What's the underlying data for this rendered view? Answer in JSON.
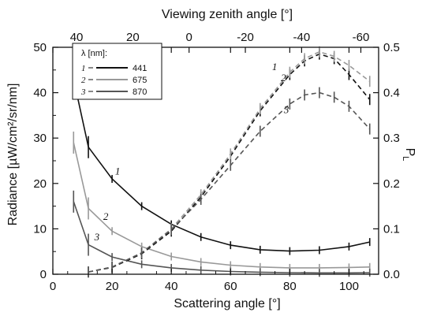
{
  "chart_data": {
    "type": "line",
    "xlabel": "Scattering angle [°]",
    "xlim": [
      0,
      110
    ],
    "xticks": [
      "0",
      "20",
      "40",
      "60",
      "80",
      "100"
    ],
    "ylabel": "Radiance [µW/cm²/sr/nm]",
    "ylim": [
      0,
      50
    ],
    "yticks": [
      "0",
      "10",
      "20",
      "30",
      "40",
      "50"
    ],
    "y2label": "P",
    "y2label_sub": "L",
    "y2lim": [
      0,
      0.5
    ],
    "y2ticks": [
      "0.0",
      "0.1",
      "0.2",
      "0.3",
      "0.4",
      "0.5"
    ],
    "x2label": "Viewing zenith angle [°]",
    "x2ticks": [
      {
        "label": "40",
        "at": 8
      },
      {
        "label": "20",
        "at": 27
      },
      {
        "label": "0",
        "at": 46
      },
      {
        "label": "-20",
        "at": 65
      },
      {
        "label": "-40",
        "at": 84
      },
      {
        "label": "-60",
        "at": 104
      }
    ],
    "legend": {
      "title": "λ [nm]:",
      "entries": [
        {
          "num": "1",
          "label": "441"
        },
        {
          "num": "2",
          "label": "675"
        },
        {
          "num": "3",
          "label": "870"
        }
      ]
    },
    "series": [
      {
        "name": "441",
        "num": "1",
        "color": "#111111",
        "axis": "left",
        "style": "solid",
        "x": [
          7,
          12,
          20,
          30,
          40,
          50,
          60,
          70,
          80,
          90,
          100,
          107
        ],
        "y": [
          43,
          28,
          21,
          15,
          11,
          8.2,
          6.4,
          5.4,
          5.1,
          5.3,
          6.1,
          7.1
        ],
        "label_at": {
          "x": 21,
          "y": 22
        }
      },
      {
        "name": "675",
        "num": "2",
        "color": "#999999",
        "axis": "left",
        "style": "solid",
        "x": [
          7,
          12,
          20,
          30,
          40,
          50,
          60,
          70,
          80,
          90,
          100,
          107
        ],
        "y": [
          29,
          14.5,
          9.5,
          6.1,
          3.9,
          2.7,
          2.0,
          1.6,
          1.4,
          1.4,
          1.5,
          1.6
        ],
        "label_at": {
          "x": 17,
          "y": 12
        }
      },
      {
        "name": "870",
        "num": "3",
        "color": "#555555",
        "axis": "left",
        "style": "solid",
        "x": [
          7,
          12,
          20,
          30,
          40,
          50,
          60,
          70,
          80,
          90,
          100,
          107
        ],
        "y": [
          16,
          6.5,
          3.8,
          2.2,
          1.4,
          0.9,
          0.6,
          0.45,
          0.35,
          0.3,
          0.3,
          0.35
        ],
        "label_at": {
          "x": 14,
          "y": 7.5
        }
      },
      {
        "name": "441",
        "num": "1",
        "color": "#111111",
        "axis": "right",
        "style": "dashed",
        "x": [
          12,
          20,
          30,
          40,
          50,
          60,
          70,
          80,
          85,
          90,
          95,
          100,
          107
        ],
        "y": [
          0.005,
          0.015,
          0.045,
          0.095,
          0.17,
          0.26,
          0.36,
          0.44,
          0.47,
          0.485,
          0.475,
          0.44,
          0.385
        ],
        "label_at": {
          "x": 74,
          "y": 0.45
        }
      },
      {
        "name": "675",
        "num": "2",
        "color": "#999999",
        "axis": "right",
        "style": "dashed",
        "x": [
          12,
          20,
          30,
          40,
          50,
          60,
          70,
          80,
          85,
          90,
          95,
          100,
          107
        ],
        "y": [
          0.005,
          0.016,
          0.047,
          0.1,
          0.175,
          0.265,
          0.365,
          0.445,
          0.475,
          0.49,
          0.48,
          0.46,
          0.425
        ],
        "label_at": {
          "x": 77,
          "y": 0.425
        }
      },
      {
        "name": "870",
        "num": "3",
        "color": "#555555",
        "axis": "right",
        "style": "dashed",
        "x": [
          12,
          20,
          30,
          40,
          50,
          60,
          70,
          80,
          85,
          90,
          95,
          100,
          107
        ],
        "y": [
          0.005,
          0.016,
          0.047,
          0.098,
          0.165,
          0.24,
          0.315,
          0.375,
          0.395,
          0.4,
          0.39,
          0.37,
          0.32
        ],
        "label_at": {
          "x": 78,
          "y": 0.355
        }
      }
    ]
  }
}
